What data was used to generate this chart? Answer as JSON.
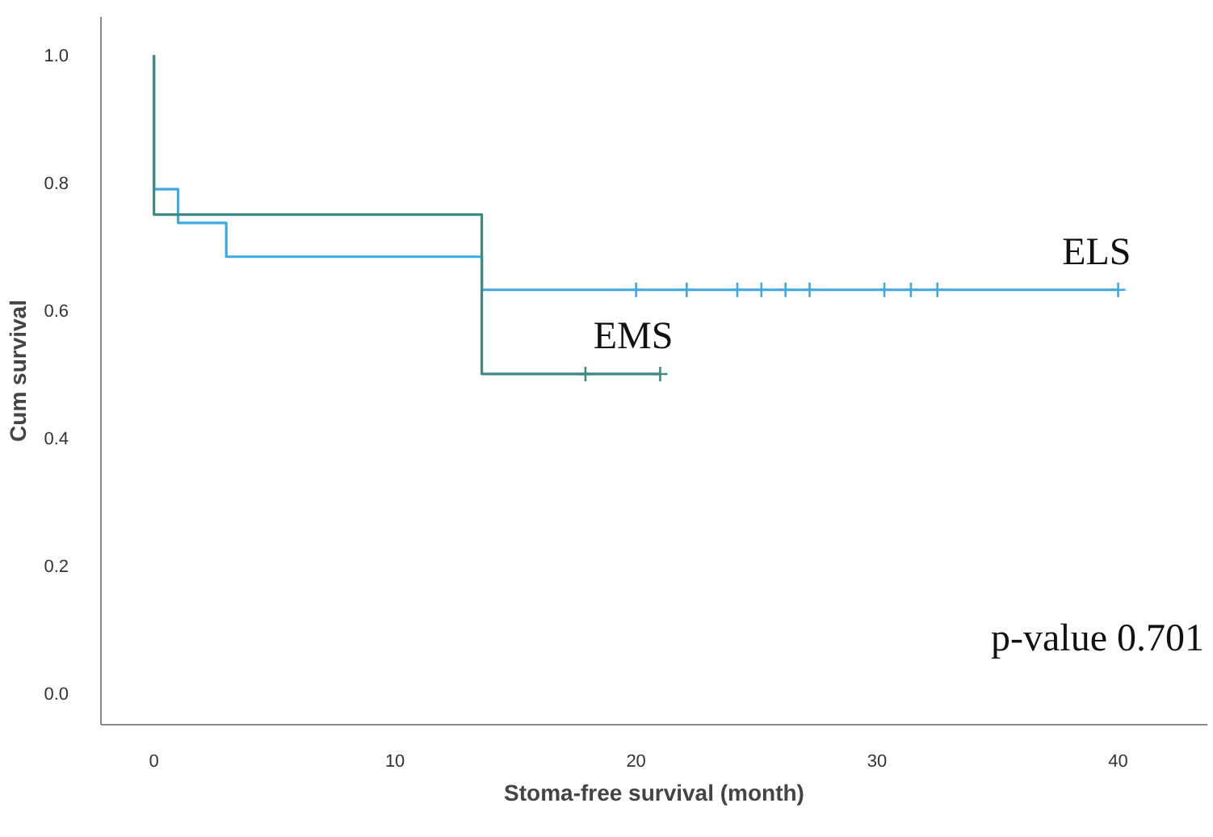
{
  "chart_data": {
    "type": "step",
    "xlabel": "Stoma-free survival (month)",
    "ylabel": "Cum survival",
    "xlim": [
      -2.2,
      43.7
    ],
    "ylim": [
      -0.05,
      1.06
    ],
    "xticks": [
      0,
      10,
      20,
      30,
      40
    ],
    "yticks": [
      {
        "value": 0,
        "label": "0.0"
      },
      {
        "value": 0.2,
        "label": "0.2"
      },
      {
        "value": 0.4,
        "label": "0.4"
      },
      {
        "value": 0.6,
        "label": "0.6"
      },
      {
        "value": 0.8,
        "label": "0.8"
      },
      {
        "value": 1,
        "label": "1.0"
      }
    ],
    "grid": false,
    "series": [
      {
        "name": "ELS",
        "color": "#3fa9e6",
        "x": [
          0,
          0,
          1,
          3,
          13.6,
          40
        ],
        "values": [
          1.0,
          0.79,
          0.737,
          0.684,
          0.632,
          0.632
        ]
      },
      {
        "name": "EMS",
        "color": "#3d8a84",
        "x": [
          0,
          0,
          13.6,
          21
        ],
        "values": [
          1.0,
          0.75,
          0.5,
          0.5
        ]
      },
      {
        "type": "scatter",
        "marker": "cross",
        "color": "#3fa9e6",
        "x": [
          20,
          22.1,
          24.2,
          25.2,
          26.2,
          27.2,
          30.3,
          31.4,
          32.5,
          40
        ],
        "values": [
          0.632,
          0.632,
          0.632,
          0.632,
          0.632,
          0.632,
          0.632,
          0.632,
          0.632,
          0.632
        ]
      },
      {
        "type": "scatter",
        "marker": "cross",
        "color": "#3d8a84",
        "x": [
          17.9,
          21
        ],
        "values": [
          0.5,
          0.5
        ]
      }
    ],
    "annotations": [
      "p-value 0.701"
    ]
  }
}
